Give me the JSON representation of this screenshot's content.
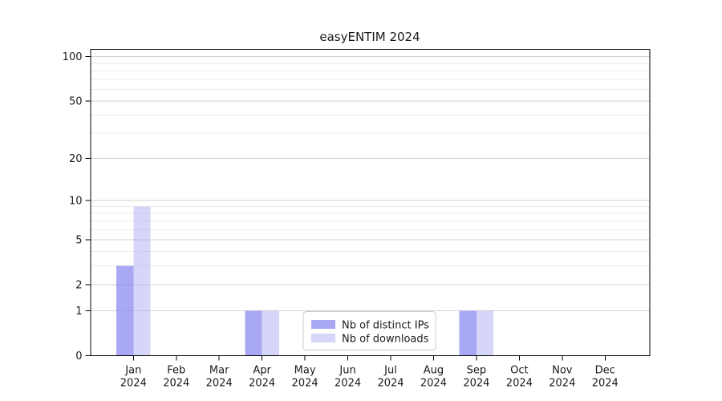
{
  "window": {
    "background": "#ffffff"
  },
  "chart_data": {
    "type": "bar",
    "title": "easyENTIM 2024",
    "xlabel": "",
    "ylabel": "",
    "categories": [
      "Jan",
      "Feb",
      "Mar",
      "Apr",
      "May",
      "Jun",
      "Jul",
      "Aug",
      "Sep",
      "Oct",
      "Nov",
      "Dec"
    ],
    "x_tick_year": "2024",
    "series": [
      {
        "key": "distinct-ips",
        "name": "Nb of distinct IPs",
        "color": "#8686f0",
        "opacity": 0.72,
        "values": [
          3,
          0,
          0,
          1,
          0,
          0,
          0,
          0,
          1,
          0,
          0,
          0
        ]
      },
      {
        "key": "downloads",
        "name": "Nb of downloads",
        "color": "#b1b1f1",
        "opacity": 0.52,
        "values": [
          9,
          0,
          0,
          1,
          0,
          0,
          0,
          0,
          1,
          0,
          0,
          0
        ]
      }
    ],
    "yscale": "log10(value+1)",
    "ylim": [
      0,
      110
    ],
    "y_major_ticks": [
      0,
      1,
      2,
      5,
      10,
      20,
      50,
      100
    ],
    "y_minor_gridlines": [
      3,
      4,
      6,
      7,
      8,
      9,
      30,
      40,
      60,
      70,
      80,
      90
    ],
    "grid": true,
    "legend_position": "lower center"
  },
  "colors": {
    "axis": "#000000",
    "grid_major": "#d2d2d2",
    "grid_minor": "#ebebeb",
    "legend_border": "#cccccc",
    "legend_bg": "#ffffff"
  }
}
